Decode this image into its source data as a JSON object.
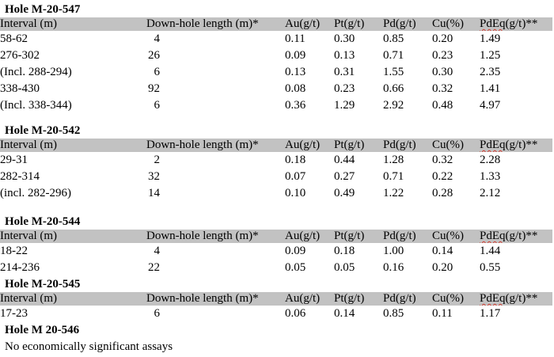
{
  "document": {
    "header_bg_color": "#c2c2c2",
    "text_color": "#000000",
    "spellcheck_underline_color": "#d03c30"
  },
  "columns": {
    "interval": "Interval (m)",
    "downhole": "Down-hole length (m)*",
    "au": "Au(g/t)",
    "pt": "Pt(g/t)",
    "pd": "Pd(g/t)",
    "cu": "Cu(%)",
    "pdeq_word": "PdEq",
    "pdeq_rest": "(g/t)**"
  },
  "sections": [
    {
      "title": "Hole M-20-547",
      "rows": [
        {
          "interval": "58-62",
          "length": "4",
          "au": "0.11",
          "pt": "0.30",
          "pd": "0.85",
          "cu": "0.20",
          "pdeq": "1.49"
        },
        {
          "interval": "276-302",
          "length": "26",
          "au": "0.09",
          "pt": "0.13",
          "pd": "0.71",
          "cu": "0.23",
          "pdeq": "1.25"
        },
        {
          "interval": "(Incl. 288-294)",
          "length": "6",
          "au": "0.13",
          "pt": "0.31",
          "pd": "1.55",
          "cu": "0.30",
          "pdeq": "2.35"
        },
        {
          "interval": "338-430",
          "length": "92",
          "au": "0.08",
          "pt": "0.23",
          "pd": "0.66",
          "cu": "0.32",
          "pdeq": "1.41"
        },
        {
          "interval": "(Incl. 338-344)",
          "length": "6",
          "au": "0.36",
          "pt": "1.29",
          "pd": "2.92",
          "cu": "0.48",
          "pdeq": "4.97"
        }
      ]
    },
    {
      "title": "Hole M-20-542",
      "rows": [
        {
          "interval": "29-31",
          "length": "2",
          "au": "0.18",
          "pt": "0.44",
          "pd": "1.28",
          "cu": "0.32",
          "pdeq": "2.28"
        },
        {
          "interval": "282-314",
          "length": "32",
          "au": "0.07",
          "pt": "0.27",
          "pd": "0.71",
          "cu": "0.22",
          "pdeq": "1.33"
        },
        {
          "interval": "(incl. 282-296)",
          "length": "14",
          "au": "0.10",
          "pt": "0.49",
          "pd": "1.22",
          "cu": "0.28",
          "pdeq": "2.12"
        }
      ]
    },
    {
      "title": "Hole M-20-544",
      "rows": [
        {
          "interval": "18-22",
          "length": "4",
          "au": "0.09",
          "pt": "0.18",
          "pd": "1.00",
          "cu": "0.14",
          "pdeq": "1.44"
        },
        {
          "interval": "214-236",
          "length": "22",
          "au": "0.05",
          "pt": "0.05",
          "pd": "0.16",
          "cu": "0.20",
          "pdeq": "0.55"
        }
      ]
    },
    {
      "title": "Hole M-20-545",
      "rows": [
        {
          "interval": "17-23",
          "length": "6",
          "au": "0.06",
          "pt": "0.14",
          "pd": "0.85",
          "cu": "0.11",
          "pdeq": "1.17"
        }
      ]
    },
    {
      "title": "Hole M 20-546",
      "note": "No economically significant assays",
      "rows": []
    }
  ]
}
